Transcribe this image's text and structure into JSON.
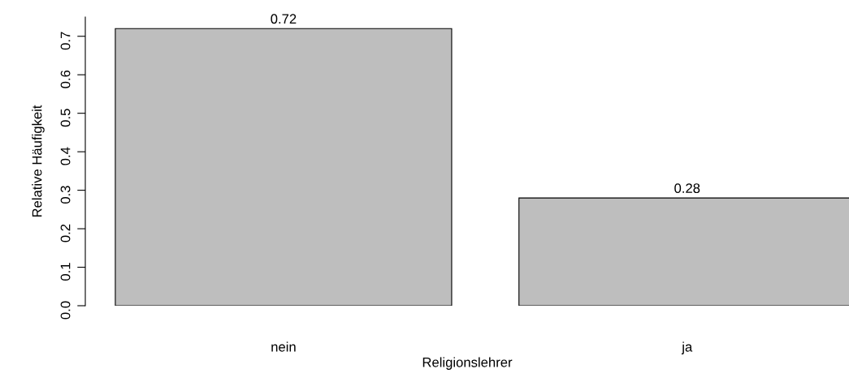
{
  "chart_data": {
    "type": "bar",
    "xlabel": "Religionslehrer",
    "ylabel": "Relative Häufigkeit",
    "categories": [
      "nein",
      "ja"
    ],
    "values": [
      0.72,
      0.28
    ],
    "color": "#bebebe",
    "ylim": [
      0,
      0.75
    ],
    "yticks": [
      {
        "value": 0,
        "label": "0.0"
      },
      0.1,
      0.2,
      0.3,
      0.4,
      0.5,
      0.6,
      0.7
    ],
    "grid": false,
    "data_labels": true
  }
}
